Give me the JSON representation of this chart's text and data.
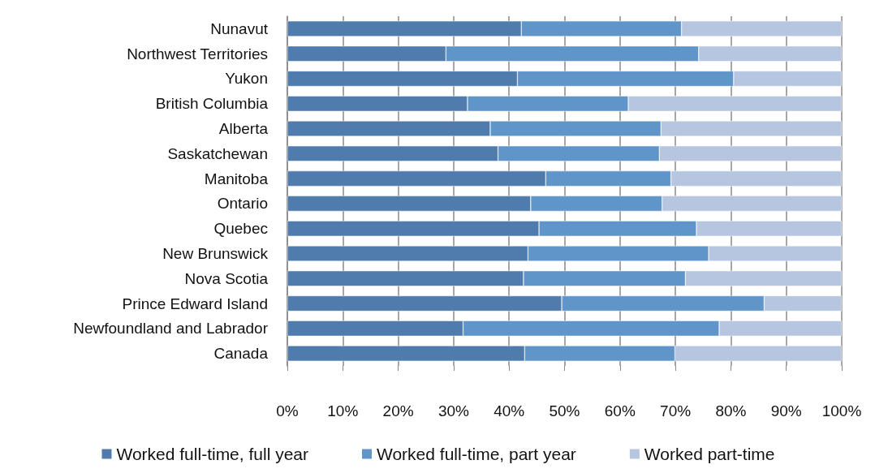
{
  "chart_data": {
    "type": "bar",
    "orientation": "horizontal",
    "stacked": true,
    "categories": [
      "Nunavut",
      "Northwest Territories",
      "Yukon",
      "British Columbia",
      "Alberta",
      "Saskatchewan",
      "Manitoba",
      "Ontario",
      "Quebec",
      "New Brunswick",
      "Nova Scotia",
      "Prince Edward Island",
      "Newfoundland and Labrador",
      "Canada"
    ],
    "series": [
      {
        "name": "Worked full-time, full year",
        "color": "#4f7cac",
        "values": [
          42.2,
          28.6,
          41.5,
          32.5,
          36.6,
          38.0,
          46.6,
          43.9,
          45.4,
          43.4,
          42.6,
          49.5,
          31.7,
          42.8
        ]
      },
      {
        "name": "Worked full-time, part year",
        "color": "#5f95c9",
        "values": [
          28.9,
          45.6,
          39.0,
          29.0,
          30.8,
          29.1,
          22.6,
          23.7,
          28.4,
          32.6,
          29.2,
          36.5,
          46.2,
          27.1
        ]
      },
      {
        "name": "Worked part-time",
        "color": "#b6c5e0",
        "values": [
          28.9,
          25.8,
          19.5,
          38.5,
          32.6,
          32.9,
          30.8,
          32.4,
          26.2,
          24.0,
          28.2,
          14.0,
          22.1,
          30.1
        ]
      }
    ],
    "xlim": [
      0,
      100
    ],
    "xticks": [
      {
        "value": 0,
        "label": "0%"
      },
      {
        "value": 10,
        "label": "10%"
      },
      {
        "value": 20,
        "label": "20%"
      },
      {
        "value": 30,
        "label": "30%"
      },
      {
        "value": 40,
        "label": "40%"
      },
      {
        "value": 50,
        "label": "50%"
      },
      {
        "value": 60,
        "label": "60%"
      },
      {
        "value": 70,
        "label": "70%"
      },
      {
        "value": 80,
        "label": "80%"
      },
      {
        "value": 90,
        "label": "90%"
      },
      {
        "value": 100,
        "label": "100%"
      }
    ],
    "grid": "x",
    "legend": "bottom"
  }
}
